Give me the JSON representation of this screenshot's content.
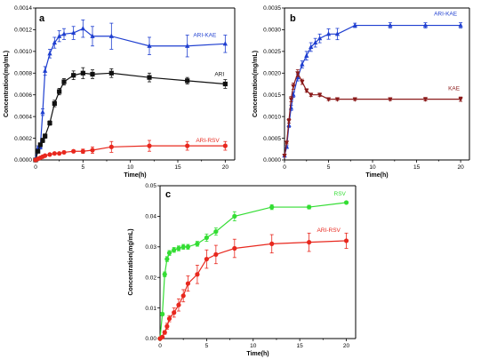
{
  "colors": {
    "blue": "#1f3fd0",
    "black": "#111111",
    "red": "#e8281e",
    "darkred": "#8b1a1a",
    "green": "#33dd33"
  },
  "chart_data": [
    {
      "panel": "a",
      "type": "line",
      "xlabel": "Time(h)",
      "ylabel": "Concentration(mg/mL)",
      "xlim": [
        0,
        21
      ],
      "ylim": [
        0,
        0.0014
      ],
      "xticks": [
        0,
        5,
        10,
        15,
        20
      ],
      "yticks": [
        "0.0000",
        "0.0002",
        "0.0004",
        "0.0006",
        "0.0008",
        "0.0010",
        "0.0012",
        "0.0014"
      ],
      "series": [
        {
          "name": "ARI-KAE",
          "color": "blue",
          "marker": "triangle",
          "x": [
            0,
            0.25,
            0.5,
            0.75,
            1,
            1.5,
            2,
            2.5,
            3,
            4,
            5,
            6,
            8,
            12,
            16,
            20
          ],
          "y": [
            1e-05,
            0.00011,
            0.00012,
            0.00044,
            0.00082,
            0.00098,
            0.00108,
            0.00114,
            0.00116,
            0.00117,
            0.00121,
            0.00114,
            0.00114,
            0.00105,
            0.00105,
            0.00107
          ],
          "err": [
            0,
            2e-05,
            2e-05,
            3e-05,
            4e-05,
            4e-05,
            5e-05,
            5e-05,
            5e-05,
            6e-05,
            8e-05,
            9e-05,
            0.00012,
            8e-05,
            0.0001,
            8e-05
          ]
        },
        {
          "name": "ARI",
          "color": "black",
          "marker": "square",
          "x": [
            0,
            0.25,
            0.5,
            0.75,
            1,
            1.5,
            2,
            2.5,
            3,
            4,
            5,
            6,
            8,
            12,
            16,
            20
          ],
          "y": [
            0.0,
            8e-05,
            0.00014,
            0.00018,
            0.00022,
            0.00034,
            0.00052,
            0.00063,
            0.00072,
            0.00078,
            0.0008,
            0.00079,
            0.0008,
            0.00076,
            0.00073,
            0.0007
          ],
          "err": [
            0,
            1e-05,
            1e-05,
            2e-05,
            2e-05,
            2e-05,
            3e-05,
            3e-05,
            3e-05,
            4e-05,
            5e-05,
            4e-05,
            4e-05,
            4e-05,
            3e-05,
            4e-05
          ]
        },
        {
          "name": "ARI-RSV",
          "color": "red",
          "marker": "circle",
          "x": [
            0,
            0.25,
            0.5,
            0.75,
            1,
            1.5,
            2,
            2.5,
            3,
            4,
            5,
            6,
            8,
            12,
            16,
            20
          ],
          "y": [
            0.0,
            1e-05,
            2e-05,
            3e-05,
            4e-05,
            5e-05,
            6e-05,
            6e-05,
            7e-05,
            8e-05,
            8e-05,
            9e-05,
            0.00012,
            0.00013,
            0.00013,
            0.00013
          ],
          "err": [
            0,
            0,
            0,
            0,
            0,
            1e-05,
            1e-05,
            1e-05,
            1e-05,
            1e-05,
            2e-05,
            3e-05,
            5e-05,
            5e-05,
            4e-05,
            4e-05
          ]
        }
      ]
    },
    {
      "panel": "b",
      "type": "line",
      "xlabel": "Time(h)",
      "ylabel": "Concentration(mg/mL)",
      "xlim": [
        0,
        21
      ],
      "ylim": [
        0,
        0.0035
      ],
      "xticks": [
        0,
        5,
        10,
        15,
        20
      ],
      "yticks": [
        "0.0000",
        "0.0005",
        "0.0010",
        "0.0015",
        "0.0020",
        "0.0025",
        "0.0030",
        "0.0035"
      ],
      "series": [
        {
          "name": "ARI-KAE",
          "color": "blue",
          "marker": "triangle",
          "x": [
            0,
            0.25,
            0.5,
            0.75,
            1,
            1.5,
            2,
            2.5,
            3,
            3.5,
            4,
            5,
            6,
            8,
            12,
            16,
            20
          ],
          "y": [
            0.0001,
            0.0003,
            0.0008,
            0.0012,
            0.0015,
            0.0019,
            0.0022,
            0.0024,
            0.0026,
            0.0027,
            0.0028,
            0.0029,
            0.0029,
            0.0031,
            0.0031,
            0.0031,
            0.0031
          ],
          "err": [
            0,
            3e-05,
            5e-05,
            6e-05,
            6e-05,
            8e-05,
            8e-05,
            0.0001,
            0.0001,
            0.0001,
            0.0001,
            0.00012,
            0.00013,
            5e-05,
            6e-05,
            6e-05,
            6e-05
          ]
        },
        {
          "name": "KAE",
          "color": "darkred",
          "marker": "triangle-down",
          "x": [
            0,
            0.25,
            0.5,
            0.75,
            1,
            1.5,
            2,
            2.5,
            3,
            4,
            5,
            6,
            8,
            12,
            16,
            20
          ],
          "y": [
            0.0001,
            0.0004,
            0.0009,
            0.0014,
            0.0017,
            0.002,
            0.0018,
            0.0016,
            0.0015,
            0.0015,
            0.0014,
            0.0014,
            0.0014,
            0.0014,
            0.0014,
            0.0014
          ],
          "err": [
            0,
            3e-05,
            5e-05,
            6e-05,
            7e-05,
            8e-05,
            6e-05,
            4e-05,
            4e-05,
            4e-05,
            3e-05,
            3e-05,
            3e-05,
            3e-05,
            4e-05,
            5e-05
          ]
        }
      ]
    },
    {
      "panel": "c",
      "type": "line",
      "xlabel": "Time(h)",
      "ylabel": "Concentration(mg/mL)",
      "xlim": [
        0,
        21
      ],
      "ylim": [
        0,
        0.05
      ],
      "xticks": [
        0,
        5,
        10,
        15,
        20
      ],
      "yticks": [
        "0.00",
        "0.01",
        "0.02",
        "0.03",
        "0.04",
        "0.05"
      ],
      "series": [
        {
          "name": "RSV",
          "color": "green",
          "marker": "circle",
          "x": [
            0,
            0.25,
            0.5,
            0.75,
            1,
            1.5,
            2,
            2.5,
            3,
            4,
            5,
            6,
            8,
            12,
            16,
            20
          ],
          "y": [
            0.0,
            0.008,
            0.021,
            0.026,
            0.028,
            0.029,
            0.0295,
            0.03,
            0.03,
            0.031,
            0.033,
            0.035,
            0.04,
            0.043,
            0.043,
            0.0445
          ],
          "err": [
            0,
            0.0005,
            0.0008,
            0.0008,
            0.0008,
            0.0008,
            0.0008,
            0.0008,
            0.0008,
            0.0008,
            0.0012,
            0.0012,
            0.0015,
            0.0008,
            0.0006,
            0.0004
          ]
        },
        {
          "name": "ARI-RSV",
          "color": "red",
          "marker": "circle",
          "x": [
            0,
            0.25,
            0.5,
            0.75,
            1,
            1.5,
            2,
            2.5,
            3,
            4,
            5,
            6,
            8,
            12,
            16,
            20
          ],
          "y": [
            0.0,
            0.0005,
            0.002,
            0.004,
            0.0065,
            0.0085,
            0.011,
            0.014,
            0.018,
            0.021,
            0.026,
            0.0275,
            0.0295,
            0.031,
            0.0315,
            0.032
          ],
          "err": [
            0,
            0.0003,
            0.0006,
            0.001,
            0.001,
            0.0015,
            0.002,
            0.002,
            0.0025,
            0.003,
            0.003,
            0.003,
            0.003,
            0.003,
            0.003,
            0.0025
          ]
        }
      ]
    }
  ]
}
